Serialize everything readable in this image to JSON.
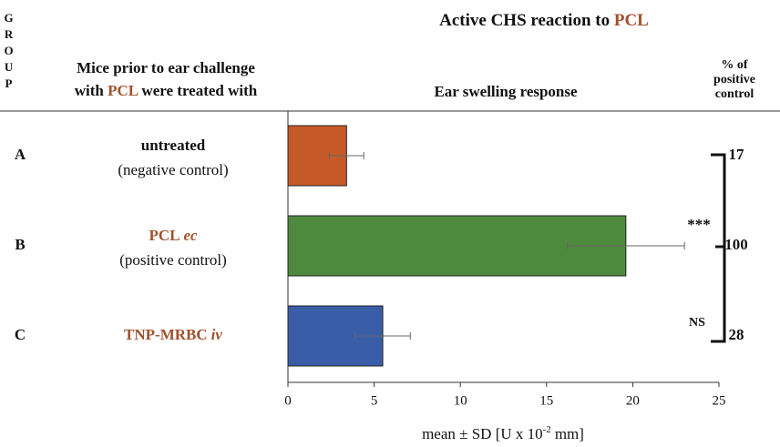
{
  "chart_data": {
    "type": "bar",
    "orientation": "horizontal",
    "title": {
      "text": "Active CHS reaction to",
      "highlight": "PCL"
    },
    "group_header": "GROUP",
    "treatment_header": [
      "Mice prior to ear challenge",
      "with",
      "PCL",
      "were treated with"
    ],
    "response_header": "Ear swelling response",
    "percent_header": [
      "% of",
      "positive",
      "control"
    ],
    "categories": [
      "A",
      "B",
      "C"
    ],
    "treatments": [
      {
        "name": "untreated",
        "note": "(negative control)"
      },
      {
        "name": "PCL",
        "qualifier": "ec",
        "note": "(positive control)"
      },
      {
        "name": "TNP-MRBC",
        "qualifier": "iv"
      }
    ],
    "highlight_color": "#a0522d",
    "values": [
      3.4,
      19.6,
      5.5
    ],
    "errors": [
      1.0,
      3.4,
      1.6
    ],
    "colors": [
      "#c55a28",
      "#4e8a3e",
      "#3a5da8"
    ],
    "percent": [
      17,
      100,
      28
    ],
    "significance": [
      "***",
      "NS"
    ],
    "xlabel": [
      "mean ± SD [U x 10",
      "-2",
      "mm]"
    ],
    "xlim": [
      0,
      25
    ],
    "xticks": [
      0,
      5,
      10,
      15,
      20,
      25
    ]
  }
}
